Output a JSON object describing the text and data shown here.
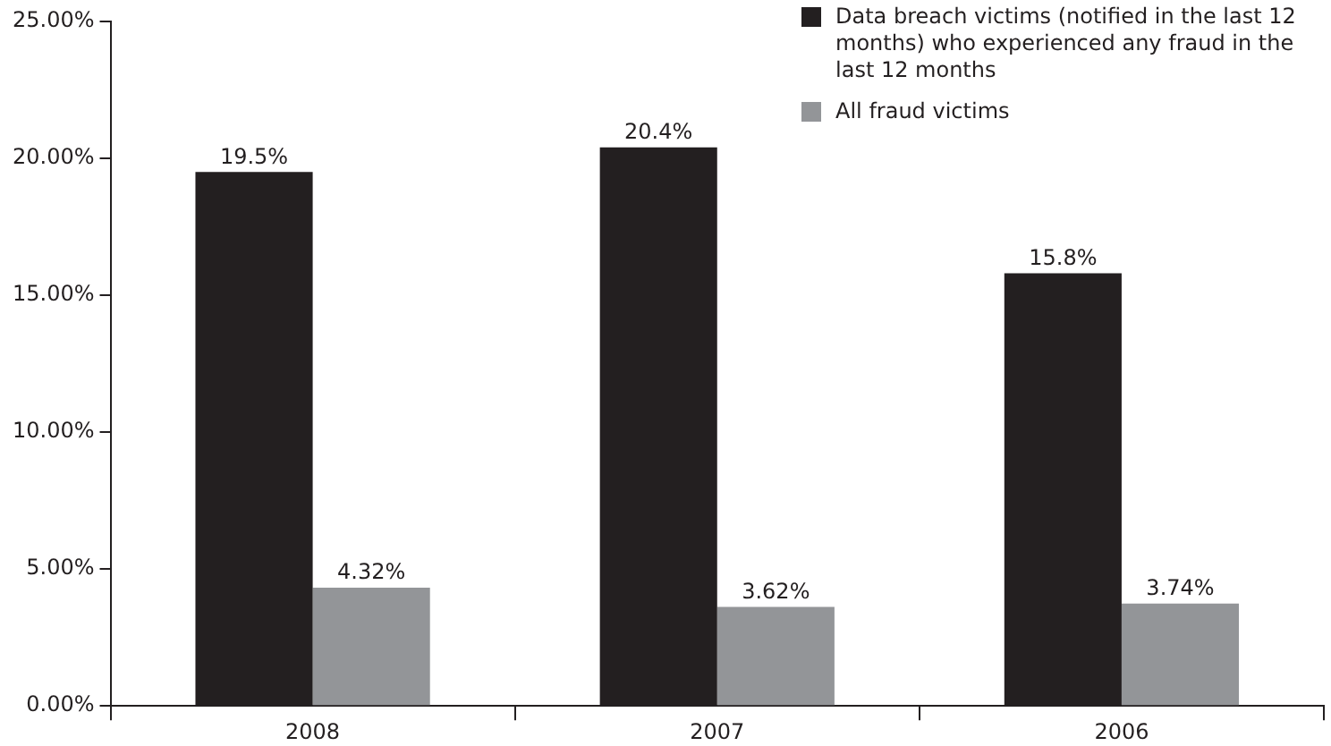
{
  "chart_data": {
    "type": "bar",
    "categories": [
      "2008",
      "2007",
      "2006"
    ],
    "series": [
      {
        "name": "Data breach victims (notified in the last 12 months) who experienced any fraud in the last 12 months",
        "color": "#231f20",
        "values": [
          19.5,
          20.4,
          15.8
        ],
        "value_labels": [
          "19.5%",
          "20.4%",
          "15.8%"
        ]
      },
      {
        "name": "All fraud victims",
        "color": "#939598",
        "values": [
          4.32,
          3.62,
          3.74
        ],
        "value_labels": [
          "4.32%",
          "3.62%",
          "3.74%"
        ]
      }
    ],
    "ylim": [
      0,
      25
    ],
    "yticks": [
      {
        "value": 0,
        "label": "0.00%"
      },
      {
        "value": 5,
        "label": "5.00%"
      },
      {
        "value": 10,
        "label": "10.00%"
      },
      {
        "value": 15,
        "label": "15.00%"
      },
      {
        "value": 20,
        "label": "20.00%"
      },
      {
        "value": 25,
        "label": "25.00%"
      }
    ],
    "grid": false,
    "legend": "top right"
  }
}
